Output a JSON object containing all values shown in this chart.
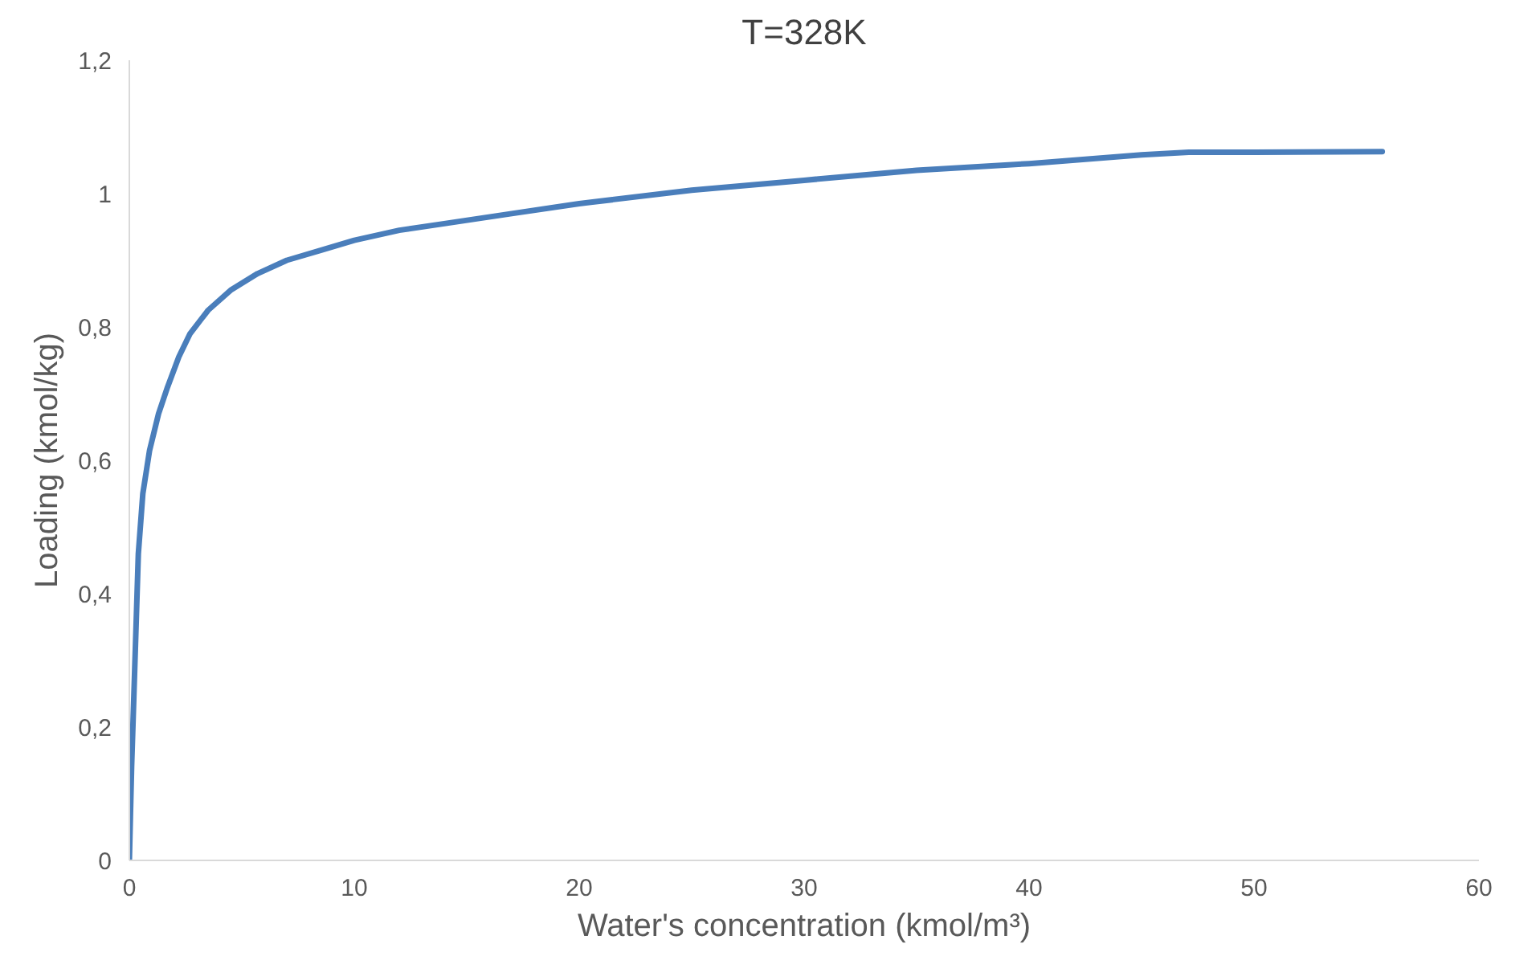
{
  "chart_data": {
    "type": "line",
    "title": "T=328K",
    "xlabel": "Water's concentration (kmol/m³)",
    "ylabel": "Loading (kmol/kg)",
    "xlim": [
      0,
      60
    ],
    "xticks": [
      0,
      10,
      20,
      30,
      40,
      50,
      60
    ],
    "ylim": [
      0,
      1.2
    ],
    "yticks": [
      {
        "value": 0,
        "label": "0"
      },
      {
        "value": 0.2,
        "label": "0,2"
      },
      {
        "value": 0.4,
        "label": "0,4"
      },
      {
        "value": 0.6,
        "label": "0,6"
      },
      {
        "value": 0.8,
        "label": "0,8"
      },
      {
        "value": 1,
        "label": "1"
      },
      {
        "value": 1.2,
        "label": "1,2"
      }
    ],
    "grid": false,
    "marker": "none",
    "line_style": "solid",
    "series": [
      {
        "color": "#4a7ebb",
        "x": [
          0,
          0.1,
          0.2,
          0.4,
          0.6,
          0.9,
          1.3,
          1.7,
          2.2,
          2.7,
          3.5,
          4.5,
          5.7,
          7,
          8.5,
          10,
          12,
          14,
          17,
          20,
          25,
          30,
          35,
          40,
          45,
          47.1,
          50,
          55.7
        ],
        "values": [
          0,
          0.14,
          0.245,
          0.46,
          0.55,
          0.615,
          0.67,
          0.71,
          0.755,
          0.79,
          0.825,
          0.855,
          0.88,
          0.9,
          0.915,
          0.93,
          0.945,
          0.955,
          0.97,
          0.985,
          1.005,
          1.02,
          1.035,
          1.045,
          1.058,
          1.062,
          1.062,
          1.063
        ]
      }
    ]
  }
}
